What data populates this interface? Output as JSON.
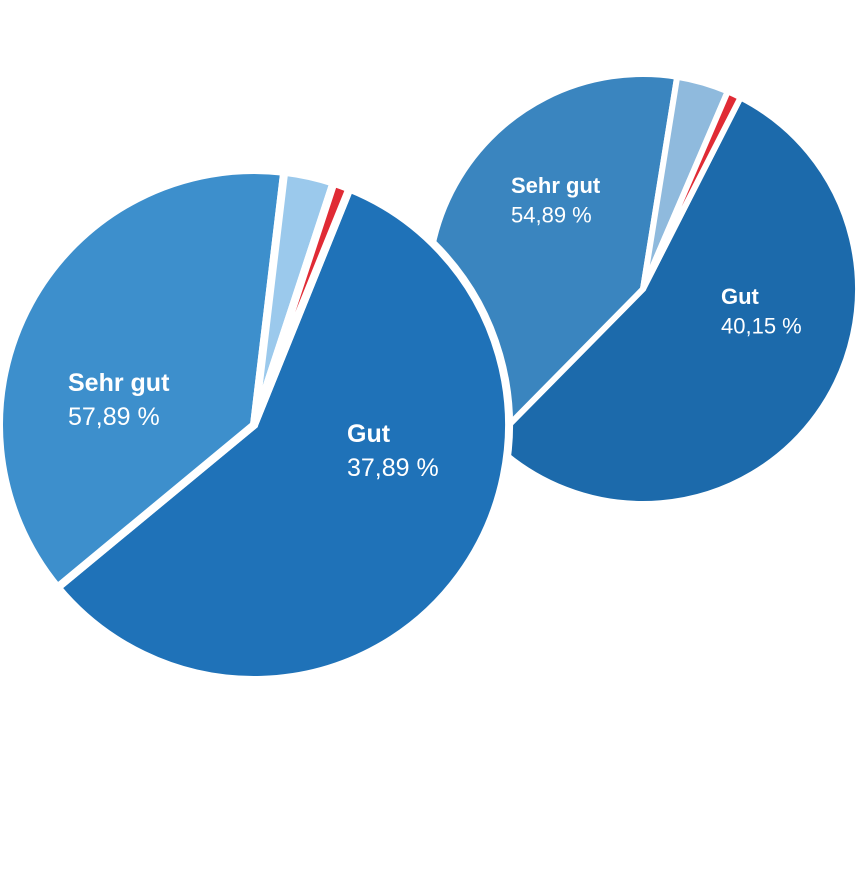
{
  "chart_data": [
    {
      "type": "pie",
      "categories": [
        "Sehr gut",
        "Gut",
        "",
        ""
      ],
      "values": [
        57.89,
        37.89,
        3.16,
        1.06
      ],
      "value_labels": [
        "57,89 %",
        "37,89 %",
        "",
        ""
      ],
      "colors": [
        "#1f72b8",
        "#3d8fcc",
        "#9bc9ec",
        "#e02b35"
      ],
      "title": ""
    },
    {
      "type": "pie",
      "categories": [
        "Sehr gut",
        "Gut",
        "",
        ""
      ],
      "values": [
        54.89,
        40.15,
        3.91,
        1.05
      ],
      "value_labels": [
        "54,89 %",
        "40,15 %",
        "",
        ""
      ],
      "colors": [
        "#1c6aab",
        "#3a85bf",
        "#8fbadd",
        "#e02b35"
      ],
      "title": ""
    }
  ]
}
